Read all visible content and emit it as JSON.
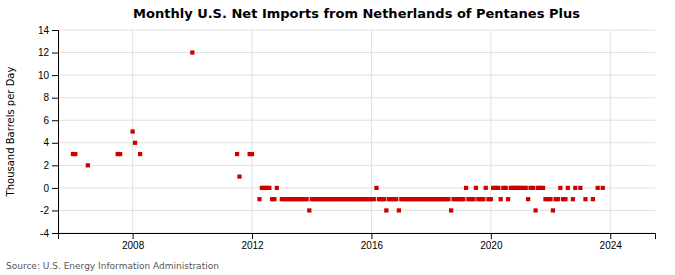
{
  "chart_data": {
    "type": "scatter",
    "title": "Monthly U.S. Net Imports from Netherlands of Pentanes Plus",
    "ylabel": "Thousand Barrels per Day",
    "annotations": [
      "Source: U.S. Energy Information Administration"
    ],
    "color": "#cc0000",
    "marker": "square",
    "grid": true,
    "xlim": [
      2005.5,
      2025.5
    ],
    "xticks": [
      2008,
      2012,
      2016,
      2020,
      2024
    ],
    "ylim": [
      -4,
      14
    ],
    "yticks": [
      -4,
      -2,
      0,
      2,
      4,
      6,
      8,
      10,
      12,
      14
    ],
    "x": [
      2006.0,
      2006.08,
      2006.5,
      2007.5,
      2007.58,
      2008.0,
      2008.08,
      2008.25,
      2010.0,
      2011.5,
      2011.58,
      2011.92,
      2012.0,
      2012.25,
      2012.33,
      2012.42,
      2012.5,
      2012.58,
      2012.67,
      2012.75,
      2012.83,
      2013.0,
      2013.08,
      2013.17,
      2013.25,
      2013.33,
      2013.42,
      2013.5,
      2013.58,
      2013.67,
      2013.75,
      2013.83,
      2013.92,
      2014.0,
      2014.08,
      2014.17,
      2014.25,
      2014.33,
      2014.42,
      2014.5,
      2014.58,
      2014.67,
      2014.75,
      2014.83,
      2014.92,
      2015.0,
      2015.08,
      2015.17,
      2015.25,
      2015.33,
      2015.42,
      2015.5,
      2015.58,
      2015.67,
      2015.75,
      2015.83,
      2015.92,
      2016.0,
      2016.08,
      2016.17,
      2016.25,
      2016.33,
      2016.42,
      2016.5,
      2016.58,
      2016.67,
      2016.75,
      2016.83,
      2016.92,
      2017.0,
      2017.08,
      2017.17,
      2017.25,
      2017.33,
      2017.42,
      2017.5,
      2017.58,
      2017.67,
      2017.75,
      2017.83,
      2017.92,
      2018.0,
      2018.08,
      2018.17,
      2018.25,
      2018.33,
      2018.42,
      2018.5,
      2018.58,
      2018.67,
      2018.75,
      2018.83,
      2018.92,
      2019.0,
      2019.08,
      2019.17,
      2019.25,
      2019.33,
      2019.42,
      2019.5,
      2019.58,
      2019.67,
      2019.75,
      2019.83,
      2019.92,
      2020.0,
      2020.08,
      2020.17,
      2020.25,
      2020.33,
      2020.42,
      2020.5,
      2020.58,
      2020.67,
      2020.75,
      2020.83,
      2020.92,
      2021.0,
      2021.08,
      2021.17,
      2021.25,
      2021.33,
      2021.42,
      2021.5,
      2021.58,
      2021.67,
      2021.75,
      2021.83,
      2021.92,
      2022.0,
      2022.08,
      2022.17,
      2022.25,
      2022.33,
      2022.42,
      2022.5,
      2022.58,
      2022.75,
      2022.83,
      2023.0,
      2023.17,
      2023.42,
      2023.58,
      2023.75
    ],
    "values": [
      3,
      3,
      2,
      3,
      3,
      5,
      4,
      3,
      12,
      3,
      1,
      3,
      3,
      -1,
      0,
      0,
      0,
      0,
      -1,
      -1,
      0,
      -1,
      -1,
      -1,
      -1,
      -1,
      -1,
      -1,
      -1,
      -1,
      -1,
      -1,
      -2,
      -1,
      -1,
      -1,
      -1,
      -1,
      -1,
      -1,
      -1,
      -1,
      -1,
      -1,
      -1,
      -1,
      -1,
      -1,
      -1,
      -1,
      -1,
      -1,
      -1,
      -1,
      -1,
      -1,
      -1,
      -1,
      -1,
      0,
      -1,
      -1,
      -1,
      -2,
      -1,
      -1,
      -1,
      -1,
      -2,
      -1,
      -1,
      -1,
      -1,
      -1,
      -1,
      -1,
      -1,
      -1,
      -1,
      -1,
      -1,
      -1,
      -1,
      -1,
      -1,
      -1,
      -1,
      -1,
      -1,
      -2,
      -1,
      -1,
      -1,
      -1,
      -1,
      0,
      -1,
      -1,
      -1,
      0,
      -1,
      -1,
      -1,
      0,
      -1,
      -1,
      0,
      0,
      0,
      -1,
      0,
      0,
      -1,
      0,
      0,
      0,
      0,
      0,
      0,
      0,
      -1,
      0,
      0,
      -2,
      0,
      0,
      0,
      -1,
      -1,
      -1,
      -2,
      -1,
      -1,
      0,
      -1,
      -1,
      0,
      -1,
      0,
      0,
      -1,
      -1,
      0,
      0
    ]
  }
}
